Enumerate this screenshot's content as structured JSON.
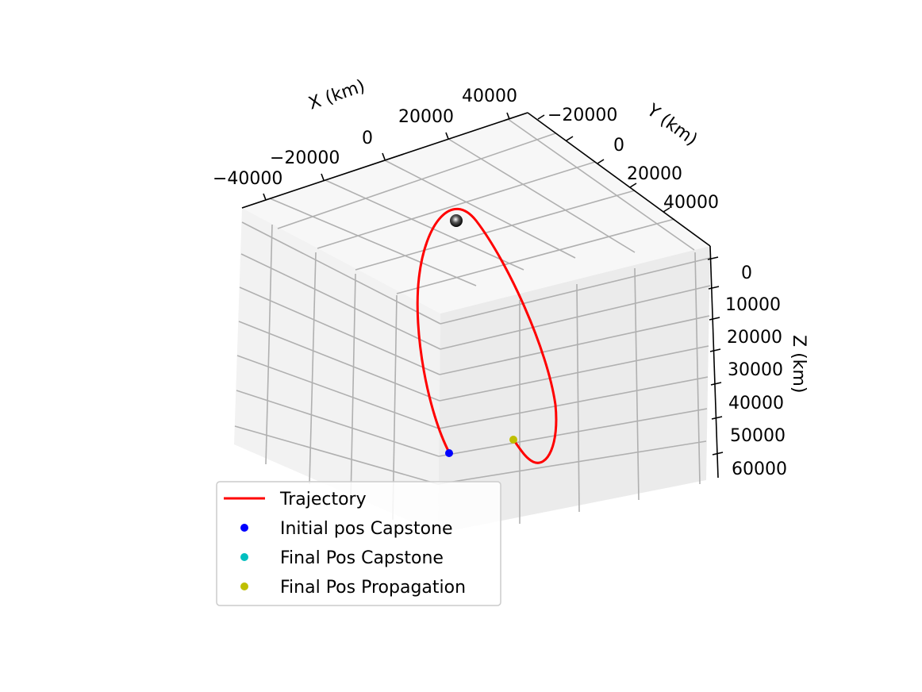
{
  "chart_data": {
    "type": "line3d",
    "title": "",
    "axes": {
      "x": {
        "label": "X (km)",
        "ticks": [
          "−40000",
          "−20000",
          "0",
          "20000",
          "40000"
        ]
      },
      "y": {
        "label": "Y (km)",
        "ticks": [
          "−20000",
          "0",
          "20000",
          "40000"
        ]
      },
      "z": {
        "label": "Z (km)",
        "ticks": [
          "0",
          "10000",
          "20000",
          "30000",
          "40000",
          "50000",
          "60000"
        ]
      }
    },
    "grid": true,
    "legend": {
      "placement": "lower-left",
      "entries": [
        {
          "label": "Trajectory",
          "marker": "line",
          "color": "#ff0000"
        },
        {
          "label": "Initial pos Capstone",
          "marker": "dot",
          "color": "#0000ff"
        },
        {
          "label": "Final Pos Capstone",
          "marker": "dot",
          "color": "#00bfbf"
        },
        {
          "label": "Final Pos Propagation",
          "marker": "dot",
          "color": "#bfbf00"
        }
      ]
    },
    "series": [
      {
        "name": "Trajectory",
        "color": "#ff0000",
        "kind": "line"
      },
      {
        "name": "Initial pos Capstone",
        "color": "#0000ff",
        "kind": "point"
      },
      {
        "name": "Final Pos Capstone",
        "color": "#00bfbf",
        "kind": "point"
      },
      {
        "name": "Final Pos Propagation",
        "color": "#bfbf00",
        "kind": "point"
      }
    ],
    "central_body": {
      "color": "#222222"
    }
  }
}
